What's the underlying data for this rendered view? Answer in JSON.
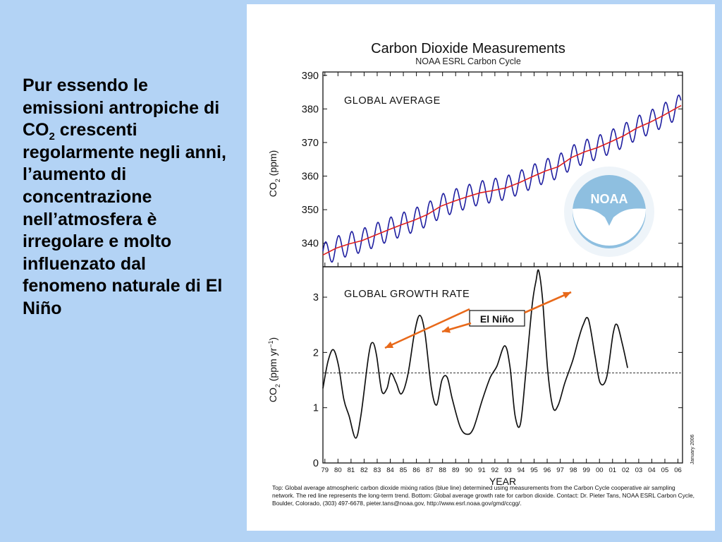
{
  "slide": {
    "text_before": "Pur essendo le emissioni antropiche di CO",
    "text_sub": "2",
    "text_after": " crescenti regolarmente negli anni, l’aumento di concentrazione nell’atmosfera è irregolare e molto influenzato dal fenomeno naturale di El Niño",
    "background_color": "#b3d3f5"
  },
  "figure": {
    "title": "Carbon Dioxide Measurements",
    "subtitle": "NOAA ESRL Carbon Cycle",
    "date_stamp": "January 2006",
    "logo_text": "NOAA",
    "logo_ring_text": "NATIONAL OCEANIC AND ATMOSPHERIC ADMINISTRATION · U.S. DEPARTMENT OF COMMERCE",
    "caption": "Top:  Global average atmospheric carbon dioxide mixing ratios (blue line) determined using measurements from the Carbon Cycle cooperative air sampling network.  The red line represents the long-term trend.  Bottom:  Global average growth rate for carbon dioxide.  Contact:  Dr. Pieter Tans, NOAA ESRL Carbon Cycle, Boulder, Colorado, (303) 497-6678, pieter.tans@noaa.gov, http://www.esrl.noaa.gov/gmd/ccgg/."
  },
  "chart_data": [
    {
      "type": "line",
      "panel_label": "GLOBAL AVERAGE",
      "ylabel": "CO",
      "ylabel_sub": "2",
      "ylabel_unit": " (ppm)",
      "ylim": [
        333,
        391
      ],
      "yticks": [
        340,
        350,
        360,
        370,
        380,
        390
      ],
      "xlim": [
        1979,
        2006.5
      ],
      "series": [
        {
          "color": "#1f1fa0",
          "description_of_form": "monthly values with seasonal cycle",
          "trend_points": [
            [
              1979,
              336.5
            ],
            [
              1980,
              338.5
            ],
            [
              1981,
              339.8
            ],
            [
              1982,
              340.8
            ],
            [
              1983,
              342.4
            ],
            [
              1984,
              344.0
            ],
            [
              1985,
              345.5
            ],
            [
              1986,
              346.9
            ],
            [
              1987,
              348.6
            ],
            [
              1988,
              351.0
            ],
            [
              1989,
              352.5
            ],
            [
              1990,
              353.8
            ],
            [
              1991,
              355.0
            ],
            [
              1992,
              355.7
            ],
            [
              1993,
              356.5
            ],
            [
              1994,
              358.0
            ],
            [
              1995,
              359.8
            ],
            [
              1996,
              361.5
            ],
            [
              1997,
              362.8
            ],
            [
              1998,
              365.5
            ],
            [
              1999,
              367.2
            ],
            [
              2000,
              368.5
            ],
            [
              2001,
              370.2
            ],
            [
              2002,
              372.0
            ],
            [
              2003,
              374.3
            ],
            [
              2004,
              376.0
            ],
            [
              2005,
              378.0
            ],
            [
              2006,
              380.2
            ],
            [
              2006.4,
              381.0
            ]
          ],
          "seasonal_amplitude": 3.5
        },
        {
          "color": "#e0201e",
          "description_of_form": "long-term trend",
          "values_ref": "trend_points"
        }
      ]
    },
    {
      "type": "line",
      "panel_label": "GLOBAL GROWTH RATE",
      "ylabel": "CO",
      "ylabel_sub": "2",
      "ylabel_unit": " (ppm yr",
      "ylabel_sup": "−1",
      "ylabel_close": ")",
      "ylim": [
        0,
        3.55
      ],
      "yticks": [
        0,
        1,
        2,
        3
      ],
      "xlabel": "YEAR",
      "xticks": [
        "79",
        "80",
        "81",
        "82",
        "83",
        "84",
        "85",
        "86",
        "87",
        "88",
        "89",
        "90",
        "91",
        "92",
        "93",
        "94",
        "95",
        "96",
        "97",
        "98",
        "99",
        "00",
        "01",
        "02",
        "03",
        "04",
        "05",
        "06"
      ],
      "x_start_year": 1979,
      "xlim": [
        1979,
        2006.5
      ],
      "mean_line": 1.63,
      "points": [
        [
          1979.0,
          1.35
        ],
        [
          1979.4,
          1.85
        ],
        [
          1979.8,
          2.05
        ],
        [
          1980.2,
          1.75
        ],
        [
          1980.6,
          1.15
        ],
        [
          1981.0,
          0.85
        ],
        [
          1981.5,
          0.45
        ],
        [
          1981.9,
          0.85
        ],
        [
          1982.5,
          1.95
        ],
        [
          1982.8,
          2.18
        ],
        [
          1983.1,
          1.95
        ],
        [
          1983.5,
          1.3
        ],
        [
          1983.9,
          1.35
        ],
        [
          1984.2,
          1.62
        ],
        [
          1984.6,
          1.45
        ],
        [
          1985.0,
          1.25
        ],
        [
          1985.5,
          1.6
        ],
        [
          1986.0,
          2.35
        ],
        [
          1986.4,
          2.67
        ],
        [
          1986.8,
          2.35
        ],
        [
          1987.3,
          1.35
        ],
        [
          1987.7,
          1.05
        ],
        [
          1988.1,
          1.5
        ],
        [
          1988.5,
          1.55
        ],
        [
          1988.9,
          1.15
        ],
        [
          1989.5,
          0.65
        ],
        [
          1990.0,
          0.52
        ],
        [
          1990.5,
          0.62
        ],
        [
          1991.2,
          1.15
        ],
        [
          1991.8,
          1.55
        ],
        [
          1992.3,
          1.75
        ],
        [
          1992.9,
          2.12
        ],
        [
          1993.3,
          1.75
        ],
        [
          1993.7,
          0.85
        ],
        [
          1994.1,
          0.7
        ],
        [
          1994.5,
          1.6
        ],
        [
          1995.0,
          2.85
        ],
        [
          1995.3,
          3.3
        ],
        [
          1995.5,
          3.48
        ],
        [
          1995.8,
          2.95
        ],
        [
          1996.2,
          1.65
        ],
        [
          1996.6,
          1.0
        ],
        [
          1997.0,
          1.05
        ],
        [
          1997.5,
          1.45
        ],
        [
          1998.1,
          1.85
        ],
        [
          1998.5,
          2.2
        ],
        [
          1998.9,
          2.5
        ],
        [
          1999.3,
          2.6
        ],
        [
          1999.8,
          1.95
        ],
        [
          2000.2,
          1.45
        ],
        [
          2000.7,
          1.55
        ],
        [
          2001.2,
          2.35
        ],
        [
          2001.5,
          2.5
        ],
        [
          2001.9,
          2.15
        ],
        [
          2002.3,
          1.72
        ]
      ]
    }
  ],
  "annotation": {
    "label": "El Niño",
    "arrow_color": "#e8691a"
  }
}
